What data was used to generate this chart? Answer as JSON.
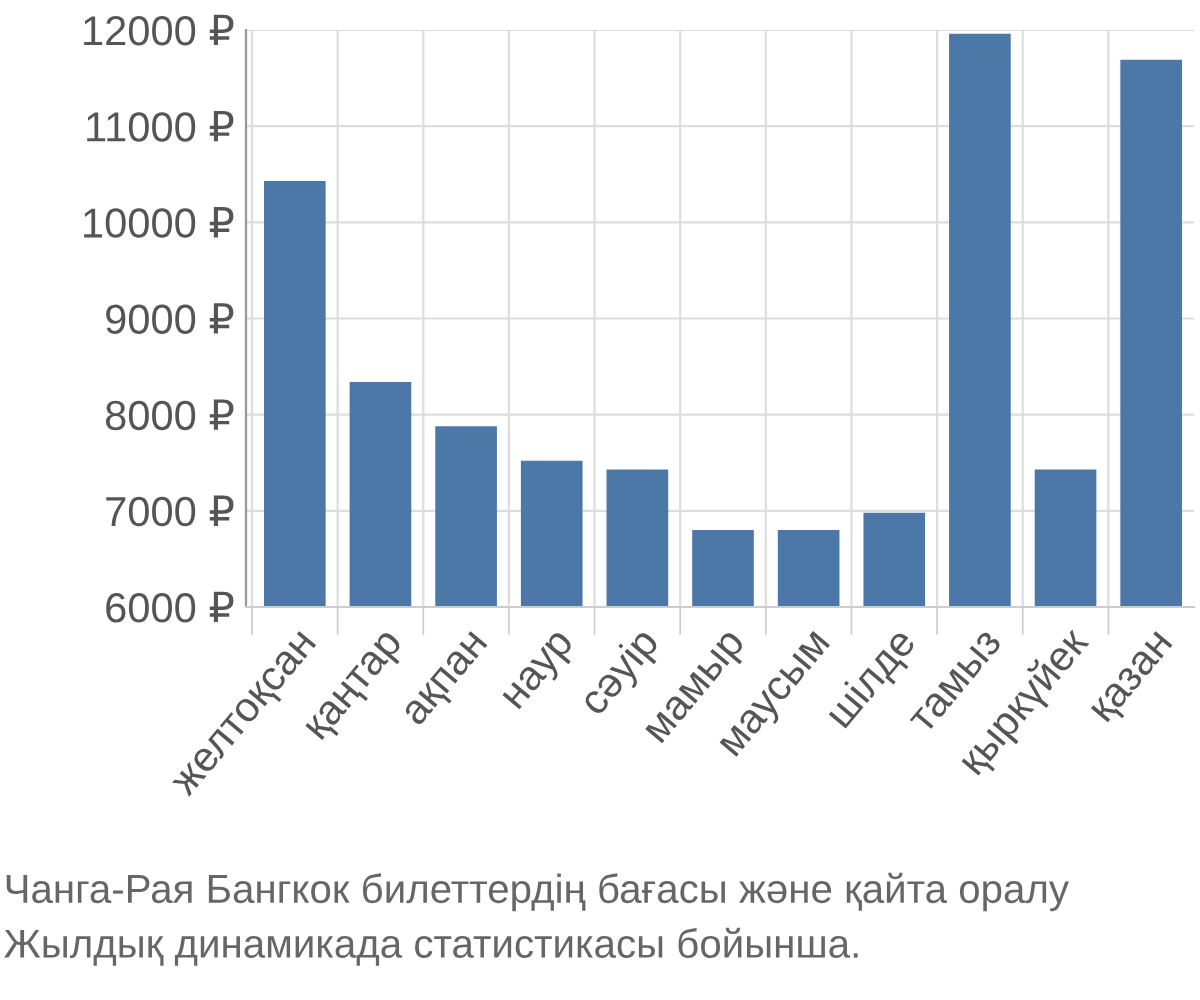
{
  "chart_data": {
    "type": "bar",
    "categories": [
      "желтоқсан",
      "қаңтар",
      "ақпан",
      "наур",
      "сәуір",
      "мамыр",
      "маусым",
      "шілде",
      "тамыз",
      "қыркүйек",
      "қазан"
    ],
    "values": [
      10430,
      8340,
      7880,
      7520,
      7430,
      6800,
      6800,
      6980,
      11960,
      7430,
      11690
    ],
    "color": "#4c78a8",
    "ylim": [
      6000,
      12000
    ],
    "yticks": [
      {
        "value": 6000,
        "label": "6000 ₽"
      },
      {
        "value": 7000,
        "label": "7000 ₽"
      },
      {
        "value": 8000,
        "label": "8000 ₽"
      },
      {
        "value": 9000,
        "label": "9000 ₽"
      },
      {
        "value": 10000,
        "label": "10000 ₽"
      },
      {
        "value": 11000,
        "label": "11000 ₽"
      },
      {
        "value": 12000,
        "label": "12000 ₽"
      }
    ],
    "grid": true,
    "annotations": [
      "Чанга-Рая Бангкок билеттердің бағасы және қайта оралу",
      "Жылдық динамикада статистикасы бойынша."
    ]
  }
}
